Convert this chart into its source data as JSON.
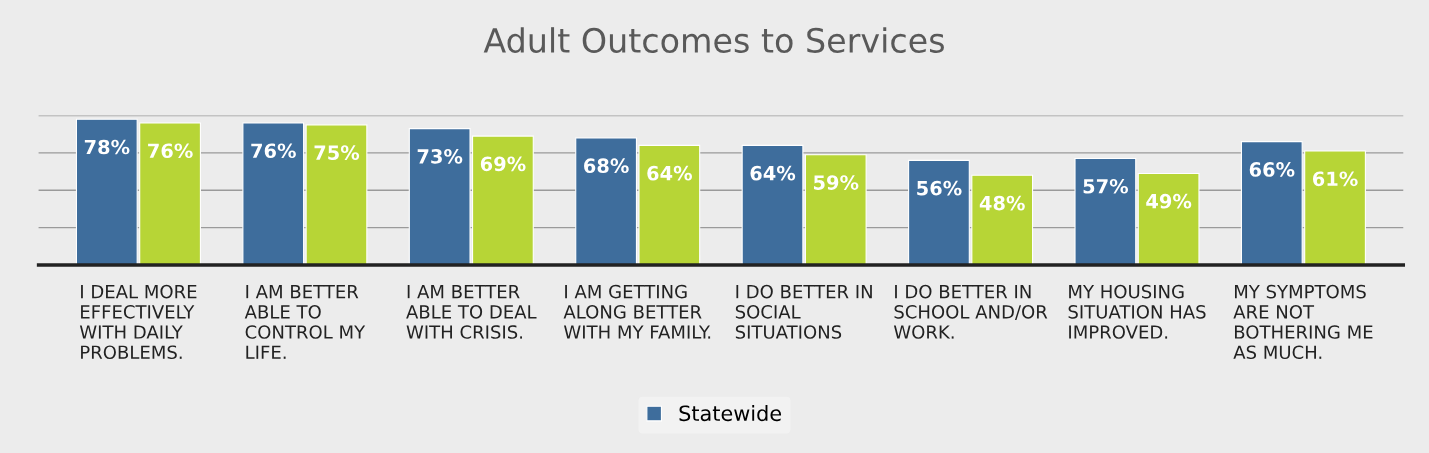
{
  "chart_data": {
    "type": "bar",
    "title": "Adult Outcomes to Services",
    "categories": [
      "I DEAL MORE\nEFFECTIVELY\nWITH DAILY\nPROBLEMS.",
      "I AM BETTER\nABLE TO\nCONTROL MY\nLIFE.",
      "I AM BETTER\nABLE TO DEAL\nWITH CRISIS.",
      "I AM GETTING\nALONG BETTER\nWITH MY FAMILY.",
      "I DO BETTER IN\nSOCIAL\nSITUATIONS",
      "I DO BETTER IN\nSCHOOL AND/OR\nWORK.",
      "MY HOUSING\nSITUATION HAS\nIMPROVED.",
      "MY SYMPTOMS\nARE NOT\nBOTHERING ME\nAS MUCH."
    ],
    "series": [
      {
        "name": "Statewide",
        "color": "#3e6d9c",
        "values": [
          78,
          76,
          73,
          68,
          64,
          56,
          57,
          66
        ],
        "value_labels": [
          "78%",
          "76%",
          "73%",
          "68%",
          "64%",
          "56%",
          "57%",
          "66%"
        ]
      },
      {
        "color": "#b7d536",
        "values": [
          76,
          75,
          69,
          64,
          59,
          48,
          49,
          61
        ],
        "value_labels": [
          "76%",
          "75%",
          "69%",
          "64%",
          "59%",
          "48%",
          "49%",
          "61%"
        ]
      }
    ],
    "ylim": [
      0,
      80
    ],
    "yticks": [
      {
        "value": 0,
        "label": null
      },
      {
        "value": 20,
        "label": null
      },
      {
        "value": 40,
        "label": null
      },
      {
        "value": 60,
        "label": null
      },
      {
        "value": 80,
        "label": null
      }
    ],
    "tick_labels": "x",
    "grid": "y",
    "legend": "bottom"
  }
}
